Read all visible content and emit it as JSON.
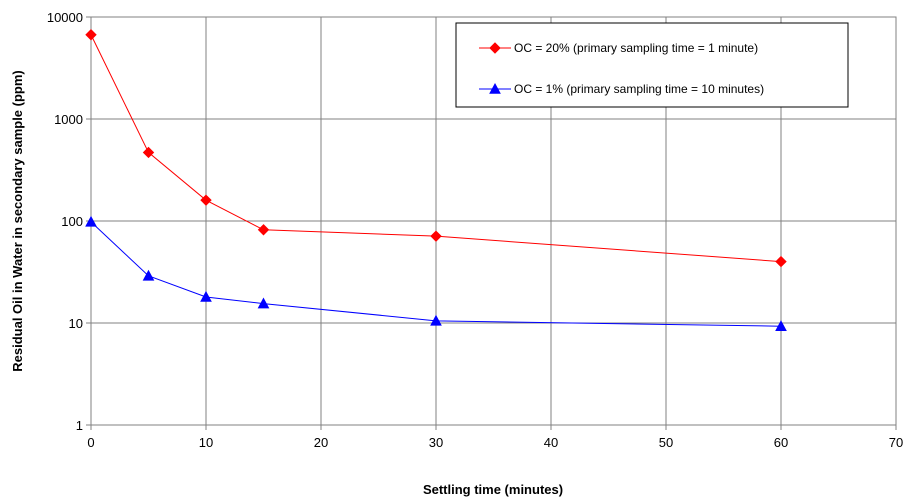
{
  "chart_data": {
    "type": "line",
    "xlabel": "Settling time (minutes)",
    "ylabel": "Residual Oil in Water in secondary sample (ppm)",
    "xlim": [
      0,
      70
    ],
    "ylim": [
      1,
      10000
    ],
    "yscale": "log",
    "grid": true,
    "legend_position": "top-right",
    "x_ticks": [
      "0",
      "10",
      "20",
      "30",
      "40",
      "50",
      "60",
      "70"
    ],
    "y_ticks": [
      "1",
      "10",
      "100",
      "1000",
      "10000"
    ],
    "series": [
      {
        "name": "OC = 20% (primary sampling time = 1 minute)",
        "color": "#ff0000",
        "marker": "diamond",
        "x": [
          0,
          5,
          10,
          15,
          30,
          60
        ],
        "y": [
          6700,
          470,
          160,
          82,
          71,
          40
        ]
      },
      {
        "name": "OC = 1% (primary sampling time = 10 minutes)",
        "color": "#0000ff",
        "marker": "triangle",
        "x": [
          0,
          5,
          10,
          15,
          30,
          60
        ],
        "y": [
          98,
          29,
          18,
          15.5,
          10.5,
          9.3
        ]
      }
    ]
  }
}
